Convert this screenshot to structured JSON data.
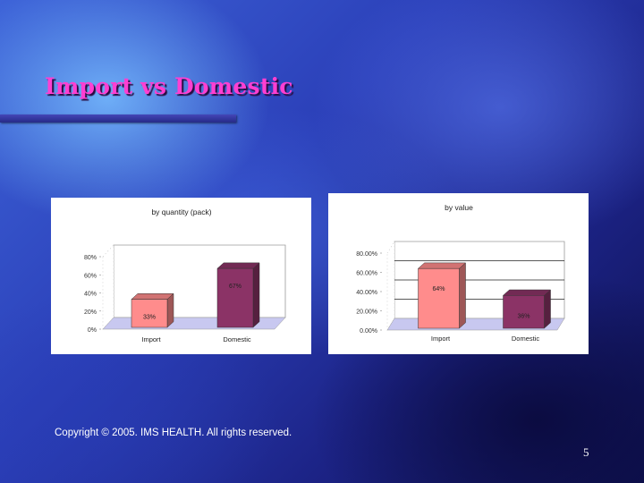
{
  "slide": {
    "title": "Import vs Domestic",
    "copyright": "Copyright © 2005. IMS HEALTH. All rights reserved.",
    "page_number": "5"
  },
  "colors": {
    "title": "#ff3fd2",
    "import_bar": "#ff8c8c",
    "domestic_bar": "#8b3366",
    "floor": "#c8c8f0"
  },
  "chart_data": [
    {
      "type": "bar",
      "title": "by quantity (pack)",
      "categories": [
        "Import",
        "Domestic"
      ],
      "values": [
        33,
        67
      ],
      "value_labels": [
        "33%",
        "67%"
      ],
      "yticks": [
        "0%",
        "20%",
        "40%",
        "60%",
        "80%"
      ],
      "ylim": [
        0,
        80
      ],
      "grid": false,
      "legend": "none"
    },
    {
      "type": "bar",
      "title": "by value",
      "categories": [
        "Import",
        "Domestic"
      ],
      "values": [
        64,
        36
      ],
      "value_labels": [
        "64%",
        "36%"
      ],
      "yticks": [
        "0.00%",
        "20.00%",
        "40.00%",
        "60.00%",
        "80.00%"
      ],
      "ylim": [
        0,
        80
      ],
      "grid": true,
      "legend": "none"
    }
  ]
}
